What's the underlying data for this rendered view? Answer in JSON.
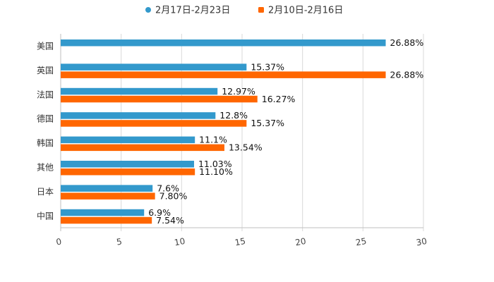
{
  "chart_data": {
    "type": "bar",
    "orientation": "horizontal",
    "title": "",
    "xlabel": "",
    "ylabel": "",
    "xlim": [
      0,
      30
    ],
    "xticks": [
      "0",
      "5",
      "10",
      "15",
      "20",
      "25",
      "30"
    ],
    "categories": [
      "美国",
      "英国",
      "法国",
      "德国",
      "韩国",
      "其他",
      "日本",
      "中国"
    ],
    "series": [
      {
        "name": "2月17日-2月23日",
        "color": "#3399cc",
        "values": [
          26.88,
          15.37,
          12.97,
          12.8,
          11.1,
          11.03,
          7.6,
          6.9
        ],
        "labels": [
          "26.88%",
          "15.37%",
          "12.97%",
          "12.8%",
          "11.1%",
          "11.03%",
          "7.6%",
          "6.9%"
        ]
      },
      {
        "name": "2月10日-2月16日",
        "color": "#ff6600",
        "values": [
          null,
          26.88,
          16.27,
          15.37,
          13.54,
          11.1,
          7.8,
          7.54
        ],
        "labels": [
          null,
          "26.88%",
          "16.27%",
          "15.37%",
          "13.54%",
          "11.10%",
          "7.80%",
          "7.54%"
        ]
      }
    ],
    "grid": true,
    "legend_position": "top-center"
  }
}
